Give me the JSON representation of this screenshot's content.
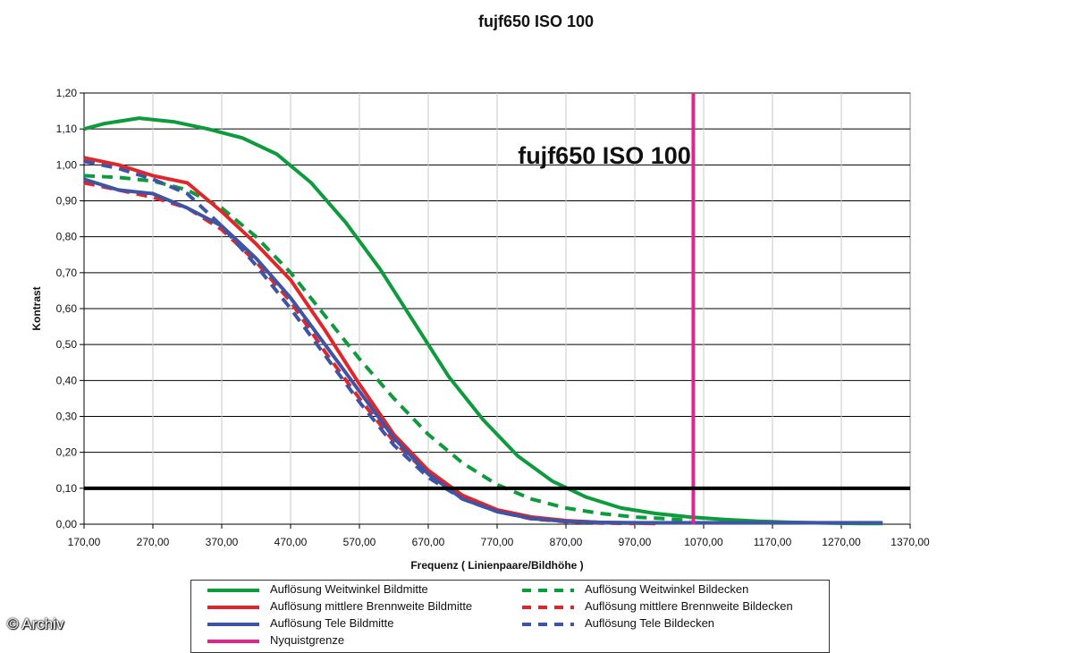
{
  "page_title": "fujf650   ISO 100",
  "credit": "© Archiv",
  "chart_data": {
    "type": "line",
    "title": "fujf650   ISO 100",
    "inner_title": "fujf650   ISO 100",
    "xlabel": "Frequenz ( Linienpaare/Bildhöhe )",
    "ylabel": "Kontrast",
    "xlim": [
      170,
      1370
    ],
    "ylim": [
      0,
      1.2
    ],
    "x_ticks": [
      "170,00",
      "270,00",
      "370,00",
      "470,00",
      "570,00",
      "670,00",
      "770,00",
      "870,00",
      "970,00",
      "1070,00",
      "1170,00",
      "1270,00",
      "1370,00"
    ],
    "y_ticks": [
      "0,00",
      "0,10",
      "0,20",
      "0,30",
      "0,40",
      "0,50",
      "0,60",
      "0,70",
      "0,80",
      "0,90",
      "1,00",
      "1,10",
      "1,20"
    ],
    "grid": true,
    "legend_position": "bottom",
    "reference_lines": [
      {
        "name": "Nyquistgrenze",
        "axis": "x",
        "value": 1055,
        "color": "#e0268e"
      },
      {
        "name": "",
        "axis": "y",
        "value": 0.1,
        "color": "#000000"
      }
    ],
    "series": [
      {
        "name": "Auflösung Weitwinkel Bildmitte",
        "color": "#0d9b3c",
        "dash": "solid",
        "x": [
          170,
          200,
          250,
          300,
          350,
          400,
          450,
          500,
          550,
          600,
          650,
          700,
          750,
          800,
          850,
          900,
          950,
          1000,
          1050,
          1100,
          1150,
          1200,
          1250,
          1300,
          1330
        ],
        "y": [
          1.1,
          1.115,
          1.13,
          1.12,
          1.1,
          1.075,
          1.03,
          0.95,
          0.84,
          0.71,
          0.56,
          0.41,
          0.29,
          0.19,
          0.12,
          0.075,
          0.045,
          0.03,
          0.02,
          0.013,
          0.008,
          0.005,
          0.003,
          0.002,
          0.002
        ]
      },
      {
        "name": "Auflösung Weitwinkel Bildecken",
        "color": "#0d9b3c",
        "dash": "dashed",
        "x": [
          170,
          220,
          270,
          320,
          370,
          420,
          470,
          520,
          570,
          620,
          670,
          720,
          770,
          820,
          870,
          920,
          970,
          1020,
          1050
        ],
        "y": [
          0.97,
          0.965,
          0.955,
          0.93,
          0.88,
          0.8,
          0.7,
          0.58,
          0.46,
          0.35,
          0.25,
          0.17,
          0.11,
          0.07,
          0.045,
          0.03,
          0.02,
          0.015,
          0.01
        ]
      },
      {
        "name": "Auflösung mittlere Brennweite Bildmitte",
        "color": "#e0262b",
        "dash": "solid",
        "x": [
          170,
          220,
          270,
          320,
          370,
          420,
          470,
          520,
          570,
          620,
          670,
          720,
          770,
          820,
          870,
          920,
          970,
          1000
        ],
        "y": [
          1.02,
          1.0,
          0.97,
          0.95,
          0.87,
          0.78,
          0.68,
          0.54,
          0.39,
          0.25,
          0.15,
          0.08,
          0.04,
          0.02,
          0.01,
          0.005,
          0.003,
          0.002
        ]
      },
      {
        "name": "Auflösung mittlere Brennweite Bildecken",
        "color": "#e0262b",
        "dash": "dashed",
        "x": [
          170,
          220,
          270,
          320,
          370,
          420,
          470,
          520,
          570,
          620,
          670,
          720,
          770,
          820,
          870,
          920,
          970
        ],
        "y": [
          0.95,
          0.93,
          0.91,
          0.88,
          0.82,
          0.73,
          0.62,
          0.48,
          0.35,
          0.23,
          0.14,
          0.075,
          0.035,
          0.015,
          0.007,
          0.003,
          0.002
        ]
      },
      {
        "name": "Auflösung Tele Bildmitte",
        "color": "#3d55a4",
        "dash": "solid",
        "x": [
          170,
          220,
          270,
          320,
          370,
          420,
          470,
          520,
          570,
          620,
          670,
          720,
          770,
          820,
          870,
          920,
          970,
          1020,
          1070,
          1120,
          1170,
          1220,
          1270,
          1330
        ],
        "y": [
          0.96,
          0.93,
          0.92,
          0.88,
          0.83,
          0.74,
          0.63,
          0.5,
          0.37,
          0.24,
          0.14,
          0.07,
          0.035,
          0.016,
          0.008,
          0.005,
          0.004,
          0.004,
          0.004,
          0.004,
          0.004,
          0.004,
          0.004,
          0.004
        ]
      },
      {
        "name": "Auflösung Tele Bildecken",
        "color": "#3d55a4",
        "dash": "dashed",
        "x": [
          170,
          220,
          270,
          320,
          370,
          420,
          470,
          520,
          570,
          620,
          670,
          720,
          770,
          820,
          870,
          920,
          970
        ],
        "y": [
          1.01,
          0.99,
          0.96,
          0.92,
          0.83,
          0.72,
          0.6,
          0.47,
          0.34,
          0.22,
          0.13,
          0.07,
          0.035,
          0.016,
          0.008,
          0.004,
          0.003
        ]
      }
    ]
  },
  "legend": {
    "items": [
      {
        "label": "Auflösung Weitwinkel Bildmitte",
        "color": "#0d9b3c",
        "dash": "solid"
      },
      {
        "label": "Auflösung Weitwinkel Bildecken",
        "color": "#0d9b3c",
        "dash": "dashed"
      },
      {
        "label": "Auflösung mittlere Brennweite Bildmitte",
        "color": "#e0262b",
        "dash": "solid"
      },
      {
        "label": "Auflösung mittlere Brennweite Bildecken",
        "color": "#e0262b",
        "dash": "dashed"
      },
      {
        "label": "Auflösung Tele Bildmitte",
        "color": "#3d55a4",
        "dash": "solid"
      },
      {
        "label": "Auflösung Tele Bildecken",
        "color": "#3d55a4",
        "dash": "dashed"
      },
      {
        "label": "Nyquistgrenze",
        "color": "#e0268e",
        "dash": "solid"
      }
    ]
  }
}
